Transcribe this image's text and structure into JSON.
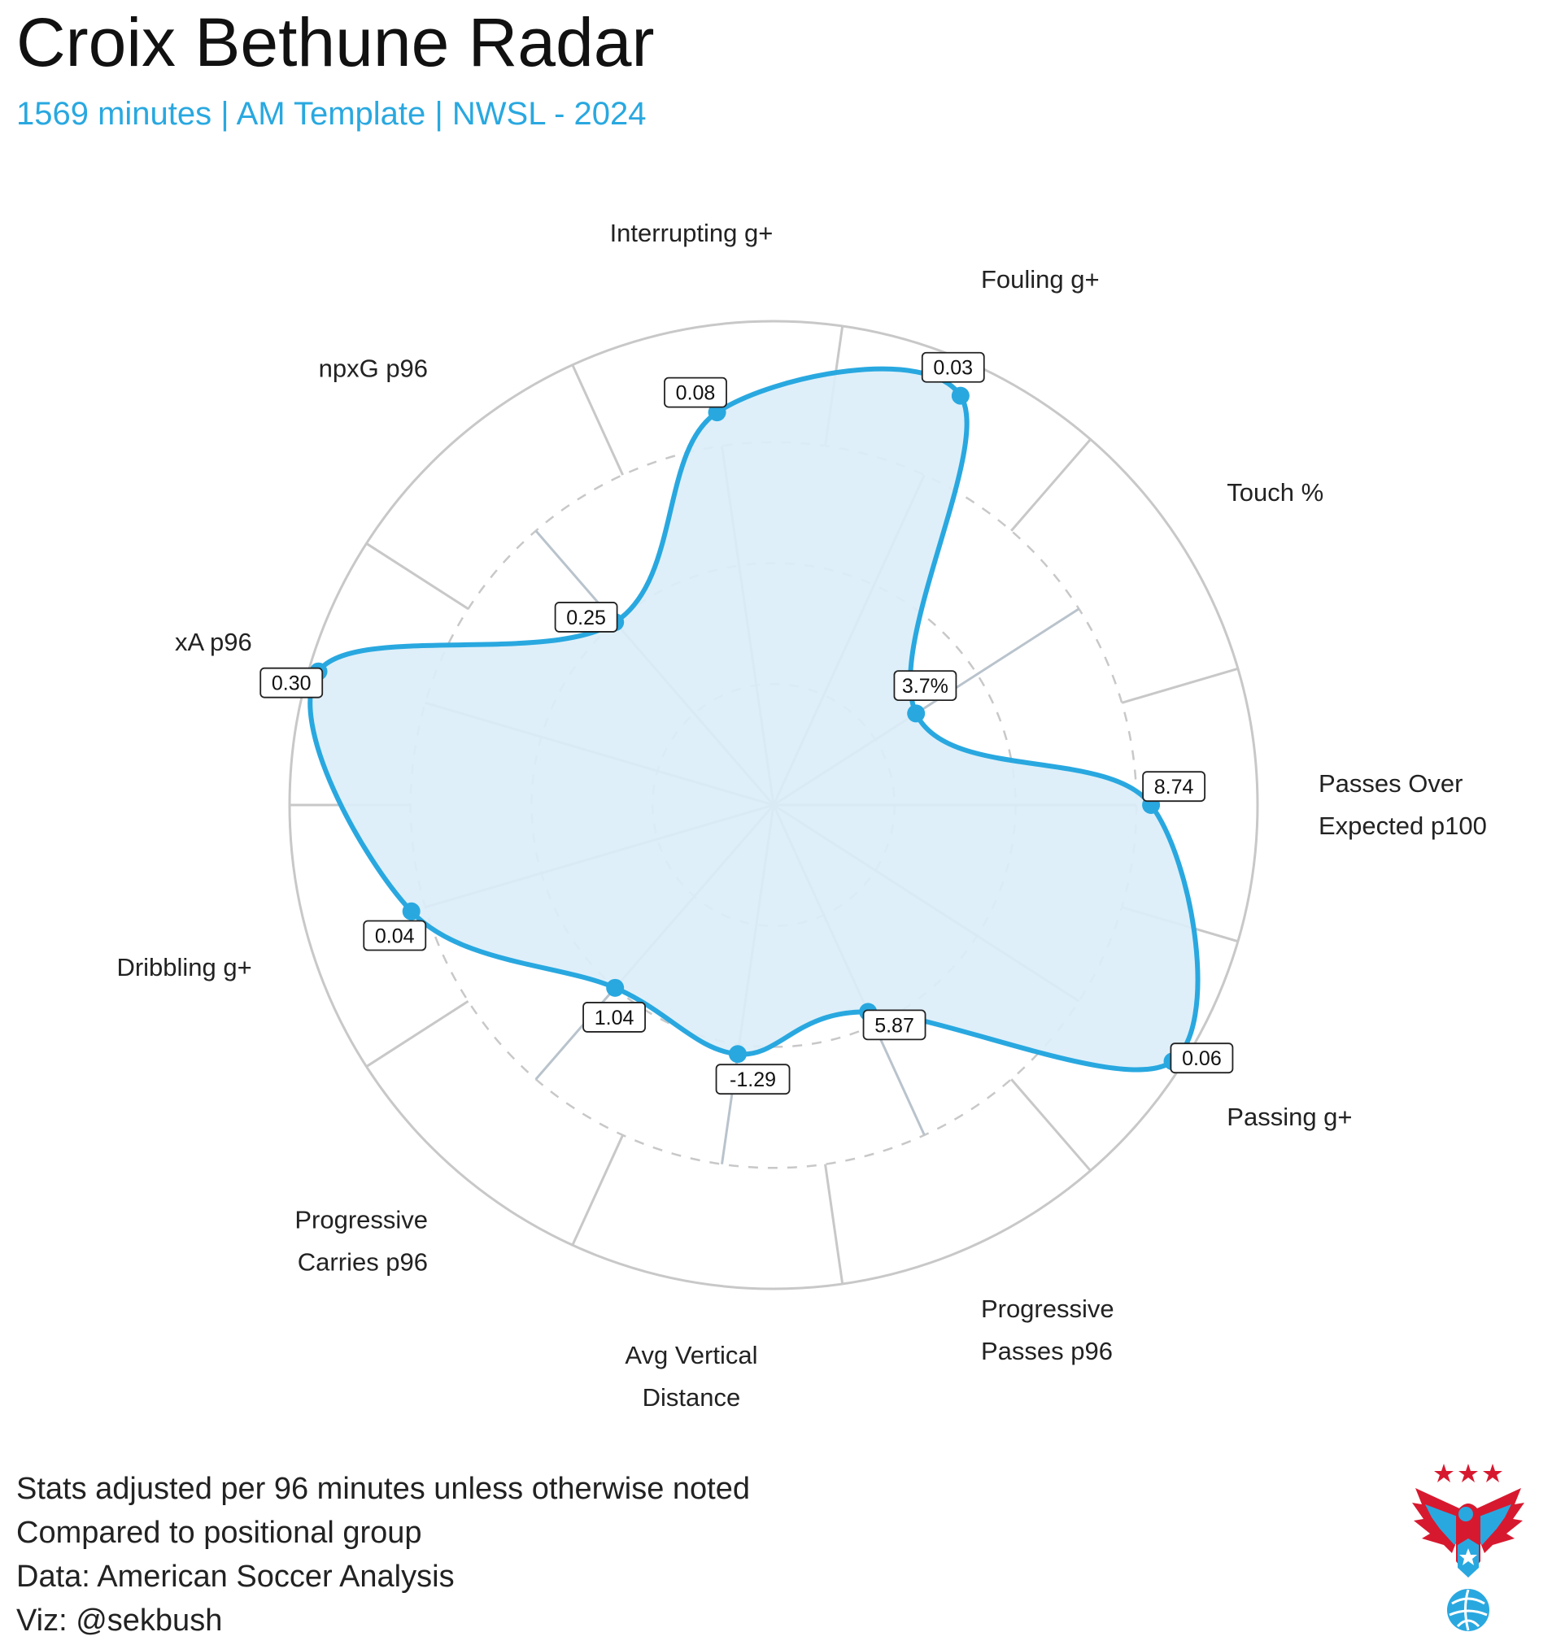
{
  "title": "Croix Bethune Radar",
  "subtitle": "1569 minutes | AM Template | NWSL - 2024",
  "footer": [
    "Stats adjusted per 96 minutes unless otherwise noted",
    "Compared to positional group",
    "Data: American Soccer Analysis",
    "Viz: @sekbush"
  ],
  "colors": {
    "accent": "#29a8e0",
    "fill": "#dbeef9",
    "grid": "#c8c8c8",
    "spoke": "#b9c3cc",
    "logo_red": "#d7192f",
    "logo_blue": "#29a8e0"
  },
  "chart_data": {
    "type": "radar",
    "title": "Croix Bethune Radar",
    "scale": "percentile",
    "rlim": [
      0,
      100
    ],
    "gridlines": [
      25,
      50,
      75
    ],
    "axes": [
      {
        "label_lines": [
          "Passes Over",
          "Expected p100"
        ],
        "value": 78,
        "value_label": "8.74"
      },
      {
        "label_lines": [
          "Touch %"
        ],
        "value": 35,
        "value_label": "3.7%"
      },
      {
        "label_lines": [
          "Fouling g+"
        ],
        "value": 93,
        "value_label": "0.03"
      },
      {
        "label_lines": [
          "Interrupting g+"
        ],
        "value": 82,
        "value_label": "0.08"
      },
      {
        "label_lines": [
          "npxG p96"
        ],
        "value": 50,
        "value_label": "0.25"
      },
      {
        "label_lines": [
          "xA p96"
        ],
        "value": 98,
        "value_label": "0.30"
      },
      {
        "label_lines": [
          "Dribbling g+"
        ],
        "value": 78,
        "value_label": "0.04"
      },
      {
        "label_lines": [
          "Progressive",
          "Carries p96"
        ],
        "value": 50,
        "value_label": "1.04"
      },
      {
        "label_lines": [
          "Avg Vertical",
          "Distance"
        ],
        "value": 52,
        "value_label": "-1.29"
      },
      {
        "label_lines": [
          "Progressive",
          "Passes p96"
        ],
        "value": 47,
        "value_label": "5.87"
      },
      {
        "label_lines": [
          "Passing g+"
        ],
        "value": 98,
        "value_label": "0.06"
      }
    ]
  }
}
